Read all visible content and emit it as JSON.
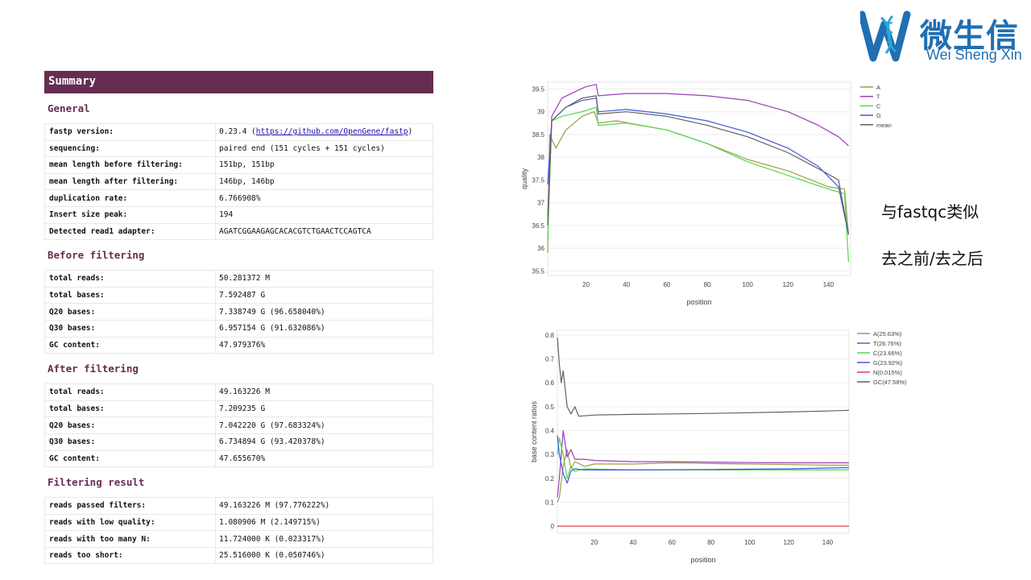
{
  "logo": {
    "cn": "微生信",
    "en": "Wei Sheng Xin"
  },
  "report": {
    "header": "Summary",
    "sections": [
      {
        "title": "General",
        "rows": [
          {
            "k": "fastp version:",
            "pre": "0.23.4 (",
            "link": "https://github.com/OpenGene/fastp",
            "post": ")"
          },
          {
            "k": "sequencing:",
            "v": "paired end (151 cycles + 151 cycles)"
          },
          {
            "k": "mean length before filtering:",
            "v": "151bp, 151bp"
          },
          {
            "k": "mean length after filtering:",
            "v": "146bp, 146bp"
          },
          {
            "k": "duplication rate:",
            "v": "6.766908%"
          },
          {
            "k": "Insert size peak:",
            "v": "194"
          },
          {
            "k": "Detected read1 adapter:",
            "v": "AGATCGGAAGAGCACACGTCTGAACTCCAGTCA"
          }
        ]
      },
      {
        "title": "Before filtering",
        "rows": [
          {
            "k": "total reads:",
            "v": "50.281372 M"
          },
          {
            "k": "total bases:",
            "v": "7.592487 G"
          },
          {
            "k": "Q20 bases:",
            "v": "7.338749 G (96.658040%)"
          },
          {
            "k": "Q30 bases:",
            "v": "6.957154 G (91.632086%)"
          },
          {
            "k": "GC content:",
            "v": "47.979376%"
          }
        ]
      },
      {
        "title": "After filtering",
        "rows": [
          {
            "k": "total reads:",
            "v": "49.163226 M"
          },
          {
            "k": "total bases:",
            "v": "7.209235 G"
          },
          {
            "k": "Q20 bases:",
            "v": "7.042220 G (97.683324%)"
          },
          {
            "k": "Q30 bases:",
            "v": "6.734894 G (93.420378%)"
          },
          {
            "k": "GC content:",
            "v": "47.655670%"
          }
        ]
      },
      {
        "title": "Filtering result",
        "rows": [
          {
            "k": "reads passed filters:",
            "v": "49.163226 M (97.776222%)"
          },
          {
            "k": "reads with low quality:",
            "v": "1.080906 M (2.149715%)"
          },
          {
            "k": "reads with too many N:",
            "v": "11.724000 K (0.023317%)"
          },
          {
            "k": "reads too short:",
            "v": "25.516000 K (0.050746%)"
          }
        ]
      }
    ]
  },
  "notes": {
    "line1": "与fastqc类似",
    "line2": "去之前/去之后"
  },
  "colors": {
    "header": "#662d50",
    "A": "#9c9c4a",
    "T": "#9b3fb8",
    "C": "#4fd84f",
    "G": "#4358d8",
    "N": "#e0403f",
    "mean": "#606060",
    "GC": "#606060"
  },
  "chart_data": [
    {
      "type": "line",
      "title": "",
      "xlabel": "position",
      "ylabel": "quality",
      "xlim": [
        1,
        151
      ],
      "ylim": [
        35.4,
        39.65
      ],
      "xticks": [
        20,
        40,
        60,
        80,
        100,
        120,
        140
      ],
      "yticks": [
        35.5,
        36,
        36.5,
        37,
        37.5,
        38,
        38.5,
        39,
        39.5
      ],
      "legend": "top-right",
      "series": [
        {
          "name": "A",
          "color": "#9c9c4a",
          "points": [
            [
              1,
              35.9
            ],
            [
              2,
              38.5
            ],
            [
              5,
              38.2
            ],
            [
              10,
              38.6
            ],
            [
              18,
              38.9
            ],
            [
              24,
              39.0
            ],
            [
              26,
              38.75
            ],
            [
              35,
              38.8
            ],
            [
              60,
              38.6
            ],
            [
              80,
              38.3
            ],
            [
              100,
              37.95
            ],
            [
              120,
              37.7
            ],
            [
              140,
              37.35
            ],
            [
              148,
              37.3
            ],
            [
              150,
              36.3
            ]
          ]
        },
        {
          "name": "T",
          "color": "#9b3fb8",
          "points": [
            [
              1,
              36.7
            ],
            [
              3,
              38.9
            ],
            [
              8,
              39.3
            ],
            [
              15,
              39.45
            ],
            [
              20,
              39.55
            ],
            [
              25,
              39.6
            ],
            [
              26,
              39.35
            ],
            [
              40,
              39.4
            ],
            [
              60,
              39.4
            ],
            [
              80,
              39.35
            ],
            [
              100,
              39.25
            ],
            [
              120,
              39.0
            ],
            [
              135,
              38.7
            ],
            [
              145,
              38.45
            ],
            [
              150,
              38.25
            ]
          ]
        },
        {
          "name": "C",
          "color": "#4fd84f",
          "points": [
            [
              1,
              36.2
            ],
            [
              3,
              38.8
            ],
            [
              8,
              38.9
            ],
            [
              18,
              39.0
            ],
            [
              25,
              39.1
            ],
            [
              26,
              38.7
            ],
            [
              40,
              38.75
            ],
            [
              60,
              38.6
            ],
            [
              80,
              38.3
            ],
            [
              100,
              37.9
            ],
            [
              120,
              37.6
            ],
            [
              140,
              37.3
            ],
            [
              148,
              37.2
            ],
            [
              150,
              35.7
            ]
          ]
        },
        {
          "name": "G",
          "color": "#4358d8",
          "points": [
            [
              1,
              37.4
            ],
            [
              3,
              38.8
            ],
            [
              10,
              39.1
            ],
            [
              18,
              39.25
            ],
            [
              25,
              39.3
            ],
            [
              26,
              39.0
            ],
            [
              40,
              39.05
            ],
            [
              60,
              38.95
            ],
            [
              80,
              38.8
            ],
            [
              100,
              38.55
            ],
            [
              120,
              38.2
            ],
            [
              135,
              37.8
            ],
            [
              145,
              37.35
            ],
            [
              150,
              36.3
            ]
          ]
        },
        {
          "name": "mean",
          "color": "#606060",
          "points": [
            [
              1,
              36.5
            ],
            [
              3,
              38.8
            ],
            [
              10,
              39.1
            ],
            [
              18,
              39.3
            ],
            [
              25,
              39.35
            ],
            [
              26,
              38.95
            ],
            [
              40,
              39.0
            ],
            [
              60,
              38.9
            ],
            [
              80,
              38.7
            ],
            [
              100,
              38.45
            ],
            [
              120,
              38.1
            ],
            [
              135,
              37.75
            ],
            [
              145,
              37.5
            ],
            [
              150,
              36.3
            ]
          ]
        }
      ]
    },
    {
      "type": "line",
      "title": "",
      "xlabel": "position",
      "ylabel": "base content ratios",
      "xlim": [
        1,
        151
      ],
      "ylim": [
        -0.03,
        0.82
      ],
      "xticks": [
        20,
        40,
        60,
        80,
        100,
        120,
        140
      ],
      "yticks": [
        0,
        0.1,
        0.2,
        0.3,
        0.4,
        0.5,
        0.6,
        0.7,
        0.8
      ],
      "legend": "top-right",
      "series": [
        {
          "name": "A(25.63%)",
          "color": "#9c9c4a",
          "points": [
            [
              1,
              0.1
            ],
            [
              2,
              0.12
            ],
            [
              4,
              0.25
            ],
            [
              6,
              0.32
            ],
            [
              8,
              0.24
            ],
            [
              10,
              0.27
            ],
            [
              15,
              0.25
            ],
            [
              20,
              0.26
            ],
            [
              40,
              0.26
            ],
            [
              60,
              0.265
            ],
            [
              80,
              0.262
            ],
            [
              100,
              0.26
            ],
            [
              120,
              0.258
            ],
            [
              140,
              0.255
            ],
            [
              151,
              0.255
            ]
          ]
        },
        {
          "name": "T(26.76%)",
          "color": "#9b3fb8",
          "points": [
            [
              1,
              0.12
            ],
            [
              2,
              0.2
            ],
            [
              4,
              0.4
            ],
            [
              6,
              0.29
            ],
            [
              8,
              0.32
            ],
            [
              10,
              0.28
            ],
            [
              15,
              0.28
            ],
            [
              20,
              0.275
            ],
            [
              40,
              0.27
            ],
            [
              60,
              0.27
            ],
            [
              80,
              0.268
            ],
            [
              100,
              0.266
            ],
            [
              120,
              0.265
            ],
            [
              140,
              0.265
            ],
            [
              151,
              0.265
            ]
          ]
        },
        {
          "name": "C(23.66%)",
          "color": "#4fd84f",
          "points": [
            [
              1,
              0.3
            ],
            [
              2,
              0.37
            ],
            [
              4,
              0.3
            ],
            [
              6,
              0.2
            ],
            [
              8,
              0.25
            ],
            [
              10,
              0.23
            ],
            [
              15,
              0.24
            ],
            [
              40,
              0.235
            ],
            [
              80,
              0.235
            ],
            [
              120,
              0.235
            ],
            [
              151,
              0.235
            ]
          ]
        },
        {
          "name": "G(23.92%)",
          "color": "#4358d8",
          "points": [
            [
              1,
              0.38
            ],
            [
              2,
              0.3
            ],
            [
              4,
              0.22
            ],
            [
              6,
              0.18
            ],
            [
              8,
              0.23
            ],
            [
              10,
              0.24
            ],
            [
              15,
              0.235
            ],
            [
              40,
              0.235
            ],
            [
              80,
              0.237
            ],
            [
              120,
              0.24
            ],
            [
              151,
              0.245
            ]
          ]
        },
        {
          "name": "N(0.015%)",
          "color": "#e0403f",
          "points": [
            [
              1,
              0.0
            ],
            [
              151,
              0.0
            ]
          ]
        },
        {
          "name": "GC(47.58%)",
          "color": "#606060",
          "points": [
            [
              1,
              0.79
            ],
            [
              2,
              0.68
            ],
            [
              3,
              0.6
            ],
            [
              4,
              0.65
            ],
            [
              6,
              0.5
            ],
            [
              8,
              0.47
            ],
            [
              10,
              0.5
            ],
            [
              12,
              0.46
            ],
            [
              20,
              0.465
            ],
            [
              40,
              0.468
            ],
            [
              60,
              0.47
            ],
            [
              80,
              0.472
            ],
            [
              100,
              0.475
            ],
            [
              120,
              0.478
            ],
            [
              140,
              0.482
            ],
            [
              151,
              0.485
            ]
          ]
        }
      ]
    }
  ]
}
